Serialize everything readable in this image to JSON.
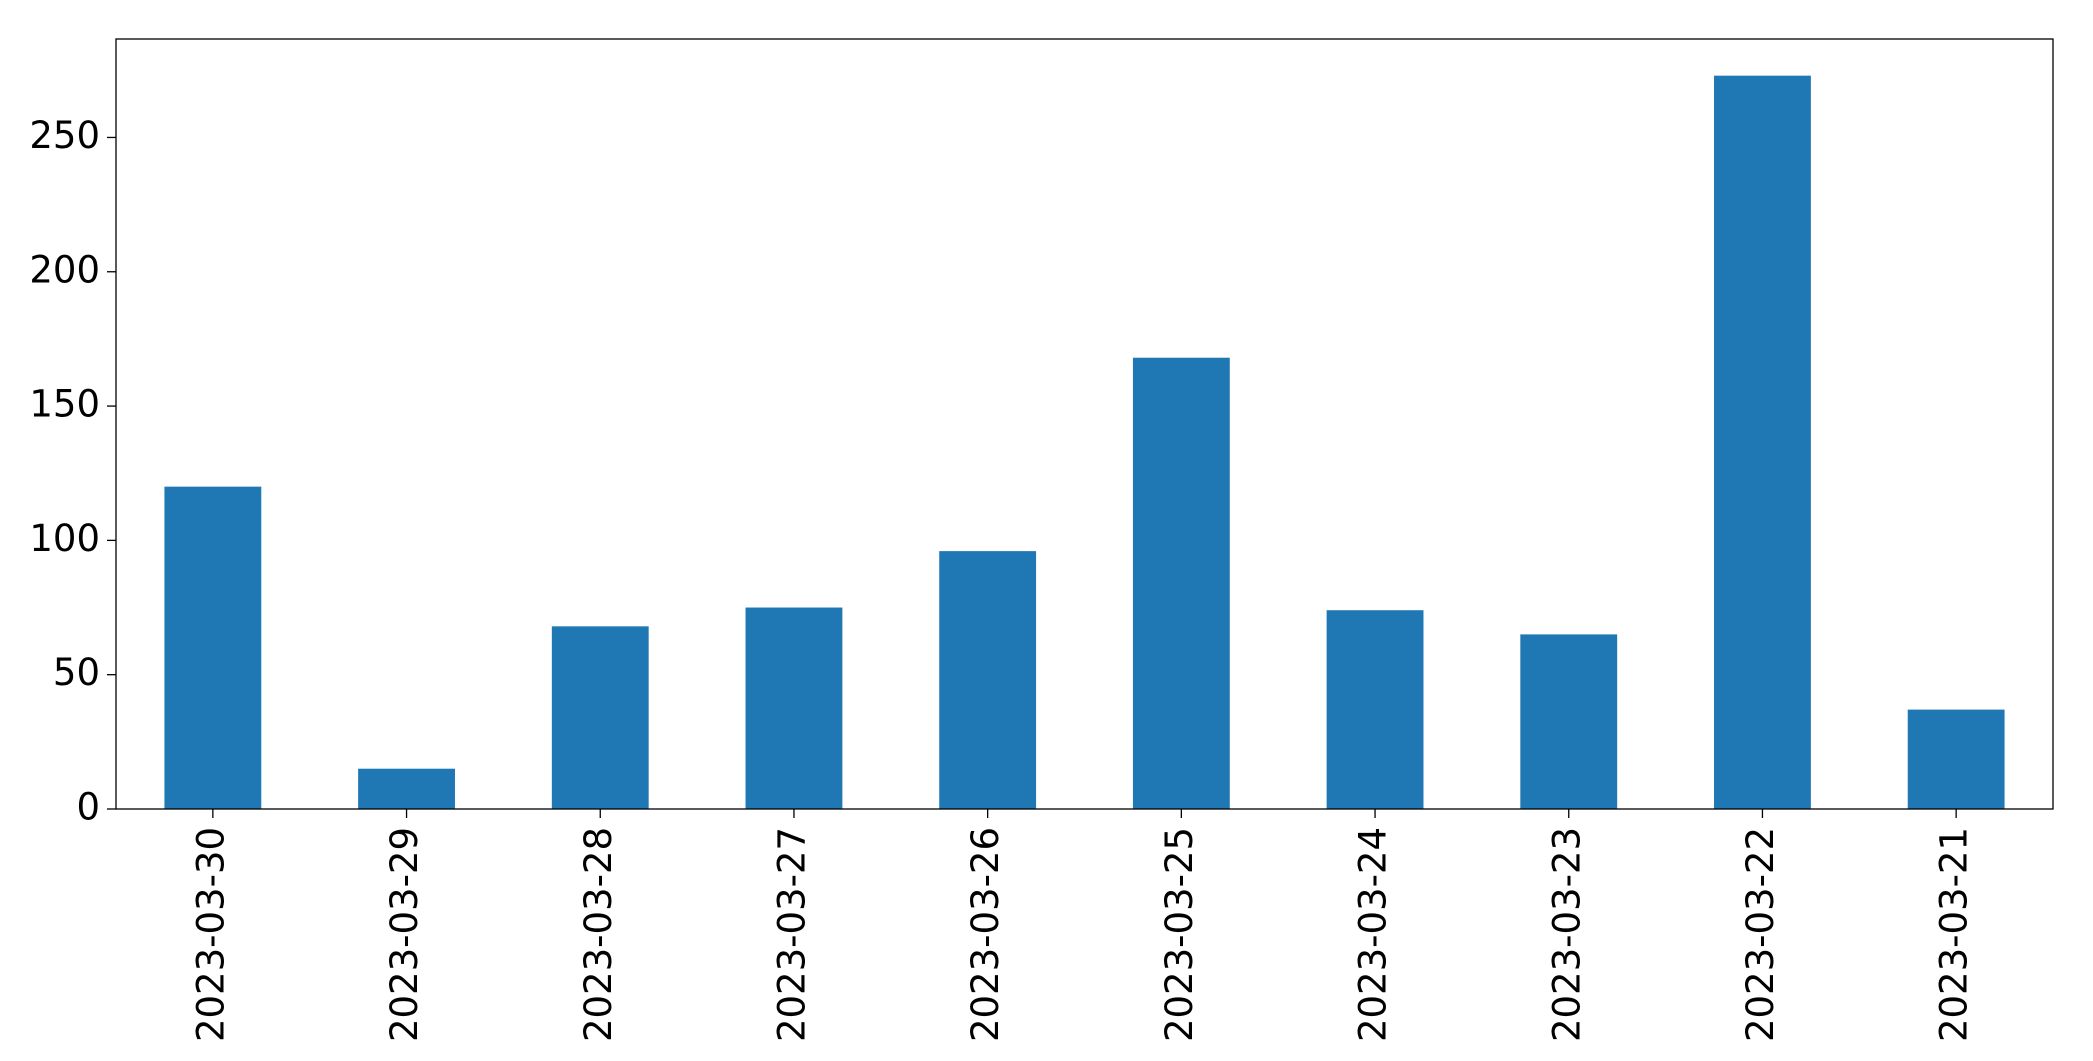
{
  "chart_data": {
    "type": "bar",
    "categories": [
      "2023-03-30",
      "2023-03-29",
      "2023-03-28",
      "2023-03-27",
      "2023-03-26",
      "2023-03-25",
      "2023-03-24",
      "2023-03-23",
      "2023-03-22",
      "2023-03-21"
    ],
    "values": [
      120,
      15,
      68,
      75,
      96,
      168,
      74,
      65,
      273,
      37
    ],
    "color": "#1f77b4",
    "ylim": [
      0,
      286.65
    ],
    "yticks": [
      0,
      50,
      100,
      150,
      200,
      250
    ],
    "grid": false
  }
}
